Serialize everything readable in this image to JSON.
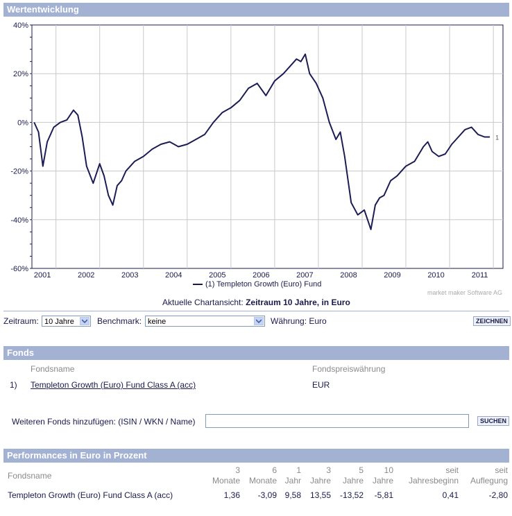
{
  "chart_section": {
    "title": "Wertentwicklung"
  },
  "chart_data": {
    "type": "line",
    "title": "Wertentwicklung",
    "ylim": [
      -60,
      40
    ],
    "y_ticks": [
      "40%",
      "20%",
      "0%",
      "-20%",
      "-40%",
      "-60%"
    ],
    "x_ticks": [
      "2001",
      "2002",
      "2003",
      "2004",
      "2005",
      "2006",
      "2007",
      "2008",
      "2009",
      "2010",
      "2011"
    ],
    "series": [
      {
        "name": "(1)  Templeton Growth (Euro) Fund",
        "end_label": "1",
        "x": [
          2001.0,
          2001.1,
          2001.2,
          2001.3,
          2001.45,
          2001.6,
          2001.75,
          2001.9,
          2002.0,
          2002.1,
          2002.2,
          2002.35,
          2002.5,
          2002.6,
          2002.7,
          2002.8,
          2002.9,
          2003.0,
          2003.1,
          2003.3,
          2003.5,
          2003.7,
          2003.9,
          2004.1,
          2004.3,
          2004.5,
          2004.7,
          2004.9,
          2005.1,
          2005.3,
          2005.5,
          2005.7,
          2005.9,
          2006.1,
          2006.3,
          2006.5,
          2006.7,
          2006.9,
          2007.0,
          2007.1,
          2007.2,
          2007.3,
          2007.45,
          2007.6,
          2007.75,
          2007.9,
          2008.0,
          2008.1,
          2008.25,
          2008.4,
          2008.55,
          2008.7,
          2008.8,
          2008.9,
          2009.0,
          2009.15,
          2009.3,
          2009.5,
          2009.7,
          2009.9,
          2010.0,
          2010.1,
          2010.25,
          2010.4,
          2010.55,
          2010.7,
          2010.85,
          2011.0,
          2011.15,
          2011.3,
          2011.42
        ],
        "values": [
          0,
          -4,
          -18,
          -8,
          -2,
          0,
          1,
          5,
          3,
          -6,
          -18,
          -25,
          -17,
          -22,
          -30,
          -34,
          -26,
          -24,
          -20,
          -16,
          -14,
          -11,
          -9,
          -8,
          -10,
          -9,
          -7,
          -5,
          0,
          4,
          6,
          9,
          14,
          16,
          11,
          17,
          20,
          24,
          26,
          25,
          28,
          20,
          16,
          10,
          0,
          -7,
          -4,
          -14,
          -33,
          -38,
          -36,
          -44,
          -34,
          -31,
          -30,
          -24,
          -22,
          -18,
          -16,
          -10,
          -8,
          -12,
          -14,
          -13,
          -9,
          -6,
          -3,
          -2,
          -5,
          -6,
          -6
        ]
      }
    ],
    "watermark": "market maker Software AG",
    "caption_prefix": "Aktuelle Chartansicht: ",
    "caption_bold": "Zeitraum 10 Jahre, in Euro"
  },
  "controls": {
    "zeitraum_label": "Zeitraum:",
    "zeitraum_value": "10 Jahre",
    "benchmark_label": "Benchmark:",
    "benchmark_value": "keine",
    "waehrung_text": "Währung: Euro",
    "zeichnen_button": "ZEICHNEN"
  },
  "fonds_section": {
    "title": "Fonds",
    "col_name": "Fondsname",
    "col_currency": "Fondspreiswährung",
    "row_index": "1)",
    "row_name": "Templeton Growth (Euro) Fund Class A (acc)",
    "row_currency": "EUR",
    "add_label": "Weiteren Fonds hinzufügen: (ISIN / WKN / Name)",
    "add_input_value": "",
    "suchen_button": "SUCHEN"
  },
  "perf_section": {
    "title": "Performances in Euro in Prozent",
    "name_header": "Fondsname",
    "headers": [
      {
        "line1": "3",
        "line2": "Monate"
      },
      {
        "line1": "6",
        "line2": "Monate"
      },
      {
        "line1": "1",
        "line2": "Jahr"
      },
      {
        "line1": "3",
        "line2": "Jahre"
      },
      {
        "line1": "5",
        "line2": "Jahre"
      },
      {
        "line1": "10",
        "line2": "Jahre"
      },
      {
        "line1": "seit",
        "line2": "Jahresbeginn"
      },
      {
        "line1": "seit",
        "line2": "Auflegung"
      }
    ],
    "row_name": "Templeton Growth (Euro) Fund Class A (acc)",
    "row_values": [
      "1,36",
      "-3,09",
      "9,58",
      "13,55",
      "-13,52",
      "-5,81",
      "0,41",
      "-2,80"
    ]
  }
}
